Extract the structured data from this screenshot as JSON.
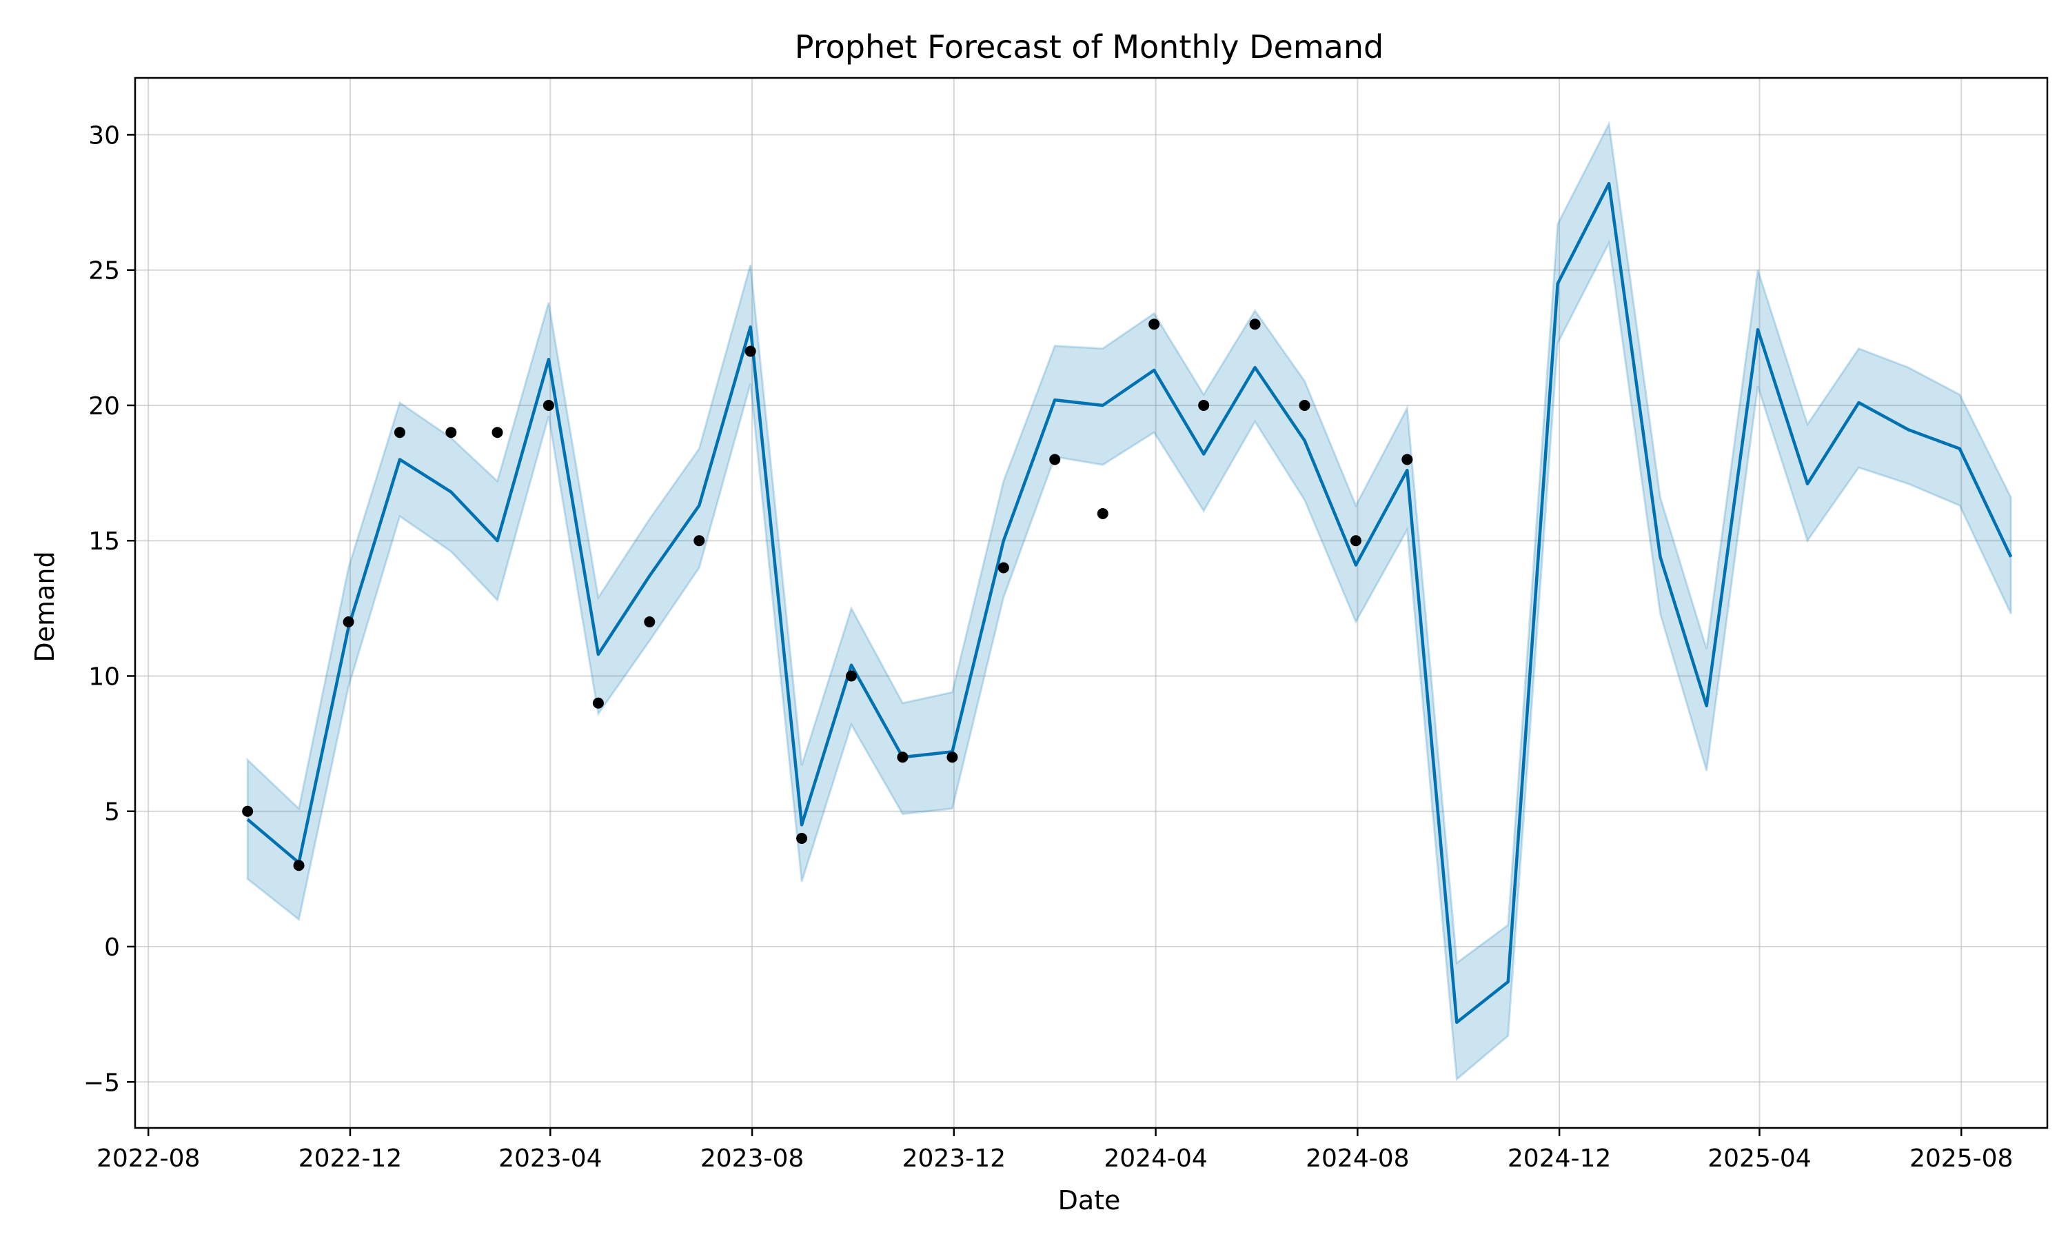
{
  "chart_data": {
    "type": "line",
    "title": "Prophet Forecast of Monthly Demand",
    "xlabel": "Date",
    "ylabel": "Demand",
    "x_ticks": [
      "2022-08",
      "2022-12",
      "2023-04",
      "2023-08",
      "2023-12",
      "2024-04",
      "2024-08",
      "2024-12",
      "2025-04",
      "2025-08"
    ],
    "y_ticks": [
      -5,
      0,
      5,
      10,
      15,
      20,
      25,
      30
    ],
    "xlim": [
      "2022-07-24",
      "2025-09-22"
    ],
    "ylim": [
      -6.7,
      32.1
    ],
    "grid": true,
    "series": [
      {
        "kind": "uncertainty_band",
        "color": "#0072B2",
        "x": [
          "2022-09-30",
          "2022-10-31",
          "2022-11-30",
          "2022-12-31",
          "2023-01-31",
          "2023-02-28",
          "2023-03-31",
          "2023-04-30",
          "2023-05-31",
          "2023-06-30",
          "2023-07-31",
          "2023-08-31",
          "2023-09-30",
          "2023-10-31",
          "2023-11-30",
          "2023-12-31",
          "2024-01-31",
          "2024-02-29",
          "2024-03-31",
          "2024-04-30",
          "2024-05-31",
          "2024-06-30",
          "2024-07-31",
          "2024-08-31",
          "2024-09-30",
          "2024-10-31",
          "2024-11-30",
          "2024-12-31",
          "2025-01-31",
          "2025-02-28",
          "2025-03-31",
          "2025-04-30",
          "2025-05-31",
          "2025-06-30",
          "2025-07-31",
          "2025-08-31"
        ],
        "lower": [
          2.5,
          1.0,
          9.6,
          15.9,
          14.6,
          12.8,
          19.6,
          8.6,
          11.3,
          14.0,
          20.8,
          2.4,
          8.2,
          4.9,
          5.1,
          12.9,
          18.1,
          17.8,
          19.0,
          16.1,
          19.4,
          16.5,
          12.0,
          15.4,
          -4.9,
          -3.3,
          22.3,
          26.0,
          12.3,
          6.5,
          20.7,
          15.0,
          17.7,
          17.1,
          16.3,
          12.3
        ],
        "upper": [
          6.9,
          5.1,
          14.0,
          20.1,
          18.8,
          17.2,
          23.8,
          12.9,
          15.8,
          18.4,
          25.2,
          6.7,
          12.5,
          9.0,
          9.4,
          17.2,
          22.2,
          22.1,
          23.4,
          20.4,
          23.5,
          20.9,
          16.3,
          19.9,
          -0.6,
          0.8,
          26.7,
          30.4,
          16.6,
          11.0,
          25.0,
          19.3,
          22.1,
          21.4,
          20.4,
          16.6
        ]
      },
      {
        "kind": "forecast_line",
        "color": "#0072B2",
        "x": [
          "2022-09-30",
          "2022-10-31",
          "2022-11-30",
          "2022-12-31",
          "2023-01-31",
          "2023-02-28",
          "2023-03-31",
          "2023-04-30",
          "2023-05-31",
          "2023-06-30",
          "2023-07-31",
          "2023-08-31",
          "2023-09-30",
          "2023-10-31",
          "2023-11-30",
          "2023-12-31",
          "2024-01-31",
          "2024-02-29",
          "2024-03-31",
          "2024-04-30",
          "2024-05-31",
          "2024-06-30",
          "2024-07-31",
          "2024-08-31",
          "2024-09-30",
          "2024-10-31",
          "2024-11-30",
          "2024-12-31",
          "2025-01-31",
          "2025-02-28",
          "2025-03-31",
          "2025-04-30",
          "2025-05-31",
          "2025-06-30",
          "2025-07-31",
          "2025-08-31"
        ],
        "y": [
          4.7,
          3.1,
          11.8,
          18.0,
          16.8,
          15.0,
          21.7,
          10.8,
          13.7,
          16.3,
          22.9,
          4.5,
          10.4,
          7.0,
          7.2,
          15.0,
          20.2,
          20.0,
          21.3,
          18.2,
          21.4,
          18.7,
          14.1,
          17.6,
          -2.8,
          -1.3,
          24.5,
          28.2,
          14.4,
          8.9,
          22.8,
          17.1,
          20.1,
          19.1,
          18.4,
          14.4
        ]
      },
      {
        "kind": "observed_points",
        "color": "#000000",
        "x": [
          "2022-09-30",
          "2022-10-31",
          "2022-11-30",
          "2022-12-31",
          "2023-01-31",
          "2023-02-28",
          "2023-03-31",
          "2023-04-30",
          "2023-05-31",
          "2023-06-30",
          "2023-07-31",
          "2023-08-31",
          "2023-09-30",
          "2023-10-31",
          "2023-11-30",
          "2023-12-31",
          "2024-01-31",
          "2024-02-29",
          "2024-03-31",
          "2024-04-30",
          "2024-05-31",
          "2024-06-30",
          "2024-07-31",
          "2024-08-31"
        ],
        "y": [
          5,
          3,
          12,
          19,
          19,
          19,
          20,
          9,
          12,
          15,
          22,
          4,
          10,
          7,
          7,
          14,
          18,
          16,
          23,
          20,
          23,
          20,
          15,
          18
        ]
      }
    ]
  }
}
